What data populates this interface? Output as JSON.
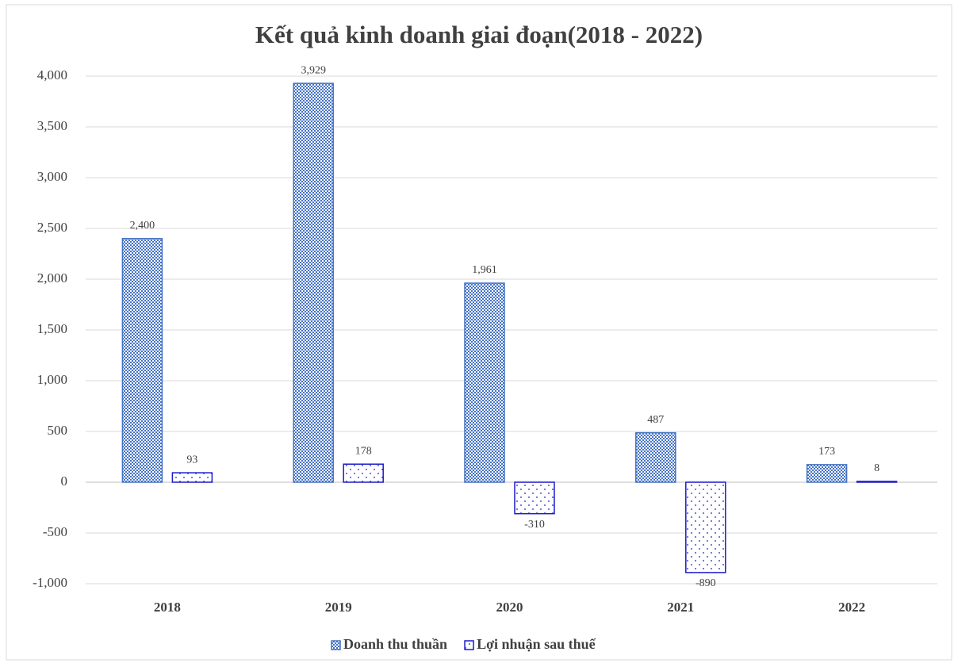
{
  "chart_data": {
    "type": "bar",
    "title": "Kết quả kinh doanh giai đoạn(2018 - 2022)",
    "categories": [
      "2018",
      "2019",
      "2020",
      "2021",
      "2022"
    ],
    "series": [
      {
        "name": "Doanh thu thuần",
        "color": "#4472c4",
        "values": [
          2400,
          3929,
          1961,
          487,
          173
        ],
        "value_labels": [
          "2,400",
          "3,929",
          "1,961",
          "487",
          "173"
        ]
      },
      {
        "name": "Lợi nhuận sau thuế",
        "color": "#1c1cc8",
        "values": [
          93,
          178,
          -310,
          -890,
          8
        ]
      }
    ],
    "ylim": [
      -1000,
      4000
    ],
    "yticks": [
      {
        "value": -1000,
        "label": "-1,000"
      },
      -500,
      0,
      500,
      {
        "value": 1000,
        "label": "1,000"
      },
      {
        "value": 1500,
        "label": "1,500"
      },
      {
        "value": 2000,
        "label": "2,000"
      },
      {
        "value": 2500,
        "label": "2,500"
      },
      {
        "value": 3000,
        "label": "3,000"
      },
      {
        "value": 3500,
        "label": "3,500"
      },
      {
        "value": 4000,
        "label": "4,000"
      }
    ],
    "grid": true,
    "legend": "bottom"
  }
}
